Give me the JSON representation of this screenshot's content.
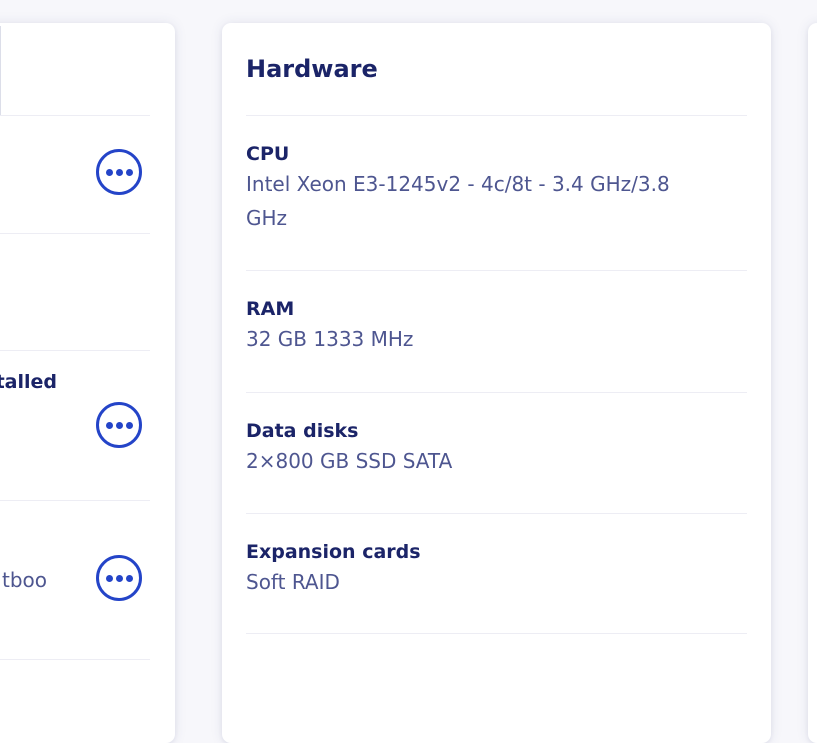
{
  "theme": {
    "background": "#f7f7fb",
    "card_background": "#ffffff",
    "heading_color": "#1b2468",
    "value_color": "#4e5690",
    "divider_color": "#ededf4",
    "accent_blue": "#2444c8"
  },
  "left_card": {
    "clipped_label_fragment": "talled",
    "clipped_value_fragment": "tboo",
    "menu_icon": "ellipsis-in-circle"
  },
  "hardware_card": {
    "title": "Hardware",
    "sections": [
      {
        "label": "CPU",
        "value": "Intel Xeon E3-1245v2 - 4c/8t - 3.4 GHz/3.8 GHz"
      },
      {
        "label": "RAM",
        "value": "32 GB 1333 MHz"
      },
      {
        "label": "Data disks",
        "value": "2×800 GB SSD SATA"
      },
      {
        "label": "Expansion cards",
        "value": "Soft RAID"
      }
    ]
  }
}
